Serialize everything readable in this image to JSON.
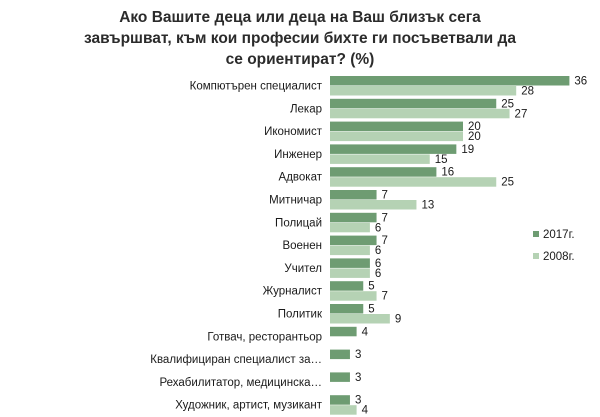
{
  "chart_data": {
    "type": "bar",
    "orientation": "horizontal",
    "title_lines": [
      "Ако Вашите деца или деца на Ваш близък сега",
      "завършват, към кои професии бихте ги посъветвали да",
      "се ориентират? (%)"
    ],
    "categories": [
      "Компютърен  специалист",
      "Лекар",
      "Икономист",
      "Инженер",
      "Адвокат",
      "Митничар",
      "Полицай",
      "Военен",
      "Учител",
      "Журналист",
      "Политик",
      "Готвач,  ресторантьор",
      "Квалифициран  специалист за…",
      "Рехабилитатор,  медицинска…",
      "Художник,  артист,  музикант"
    ],
    "series": [
      {
        "name": "2017г.",
        "color": "#6e9c72",
        "values": [
          36,
          25,
          20,
          19,
          16,
          7,
          7,
          7,
          6,
          5,
          5,
          4,
          3,
          3,
          3
        ]
      },
      {
        "name": "2008г.",
        "color": "#b5d2b4",
        "values": [
          28,
          27,
          20,
          15,
          25,
          13,
          6,
          6,
          6,
          7,
          9,
          null,
          null,
          null,
          4
        ]
      }
    ],
    "legend_position": "right",
    "xlim": [
      0,
      40
    ],
    "grid": false
  }
}
